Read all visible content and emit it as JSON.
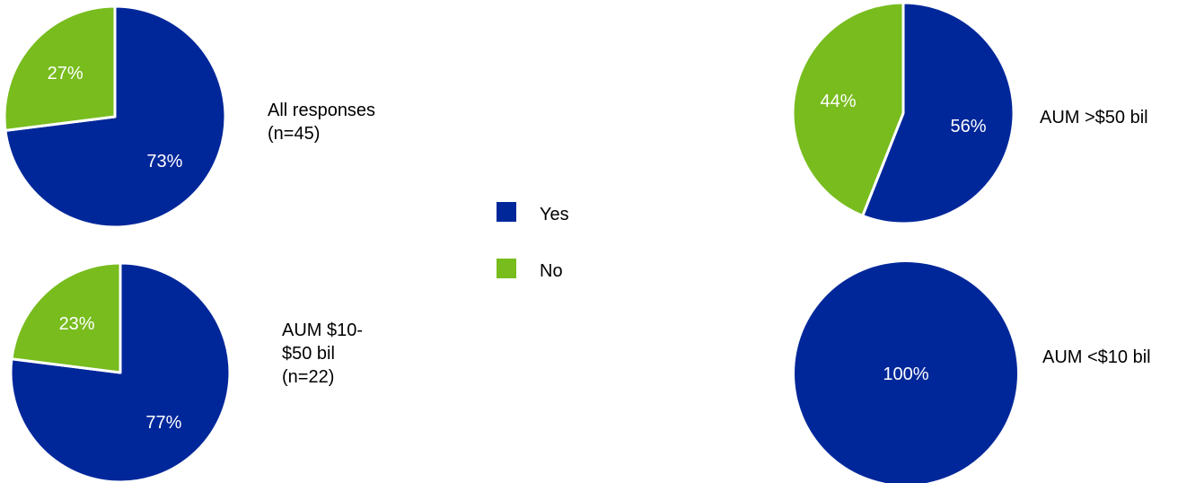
{
  "colors": {
    "yes": "#00279a",
    "no": "#78bc1e",
    "slice_border": "#ffffff",
    "text": "#000000",
    "slice_text": "#ffffff"
  },
  "legend": {
    "items": [
      {
        "label": "Yes",
        "color_key": "yes"
      },
      {
        "label": "No",
        "color_key": "no"
      }
    ]
  },
  "chart_data": [
    {
      "type": "pie",
      "title_lines": [
        "All responses",
        "(n=45)"
      ],
      "slices": [
        {
          "name": "Yes",
          "value": 73,
          "label": "73%"
        },
        {
          "name": "No",
          "value": 27,
          "label": "27%"
        }
      ]
    },
    {
      "type": "pie",
      "title_lines": [
        "AUM $10-",
        "$50 bil",
        "(n=22)"
      ],
      "slices": [
        {
          "name": "Yes",
          "value": 77,
          "label": "77%"
        },
        {
          "name": "No",
          "value": 23,
          "label": "23%"
        }
      ]
    },
    {
      "type": "pie",
      "title_lines": [
        "AUM >$50 bil"
      ],
      "slices": [
        {
          "name": "Yes",
          "value": 56,
          "label": "56%"
        },
        {
          "name": "No",
          "value": 44,
          "label": "44%"
        }
      ]
    },
    {
      "type": "pie",
      "title_lines": [
        "AUM <$10 bil"
      ],
      "slices": [
        {
          "name": "Yes",
          "value": 100,
          "label": "100%"
        },
        {
          "name": "No",
          "value": 0,
          "label": ""
        }
      ]
    }
  ]
}
